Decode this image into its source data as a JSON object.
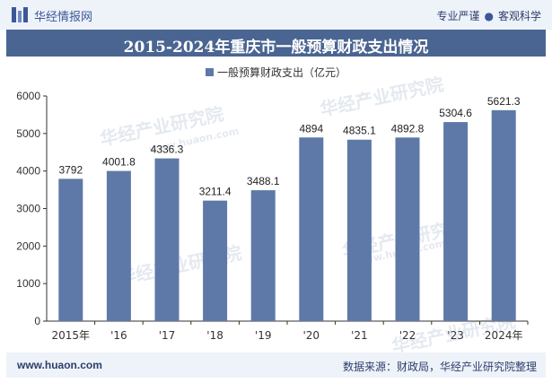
{
  "header": {
    "brand": "华经情报网",
    "tag_1": "专业严谨",
    "tag_2": "客观科学"
  },
  "watermark_text": "华经产业研究院",
  "watermark_url": "www.huaon.com",
  "colors": {
    "bar": "#5e79a7",
    "title_bg": "#4a6591",
    "header_bg": "#eef2f9",
    "text_dark": "#2c3f6b"
  },
  "chart_data": {
    "type": "bar",
    "title": "2015-2024年重庆市一般预算财政支出情况",
    "legend": "一般预算财政支出（亿元）",
    "categories": [
      "2015年",
      "'16",
      "'17",
      "'18",
      "'19",
      "'20",
      "'21",
      "'22",
      "'23",
      "2024年"
    ],
    "series": [
      {
        "name": "一般预算财政支出（亿元）",
        "values": [
          3792,
          4001.8,
          4336.3,
          3211.4,
          3488.1,
          4894,
          4835.1,
          4892.8,
          5304.6,
          5621.3
        ],
        "labels": [
          "3792",
          "4001.8",
          "4336.3",
          "3211.4",
          "3488.1",
          "4894",
          "4835.1",
          "4892.8",
          "5304.6",
          "5621.3"
        ]
      }
    ],
    "ylim": [
      0,
      6000
    ],
    "yticks": [
      0,
      1000,
      2000,
      3000,
      4000,
      5000,
      6000
    ],
    "grid": false,
    "legend_position": "top"
  },
  "footer": {
    "website": "www.huaon.com",
    "source": "数据来源：财政局，华经产业研究院整理"
  }
}
